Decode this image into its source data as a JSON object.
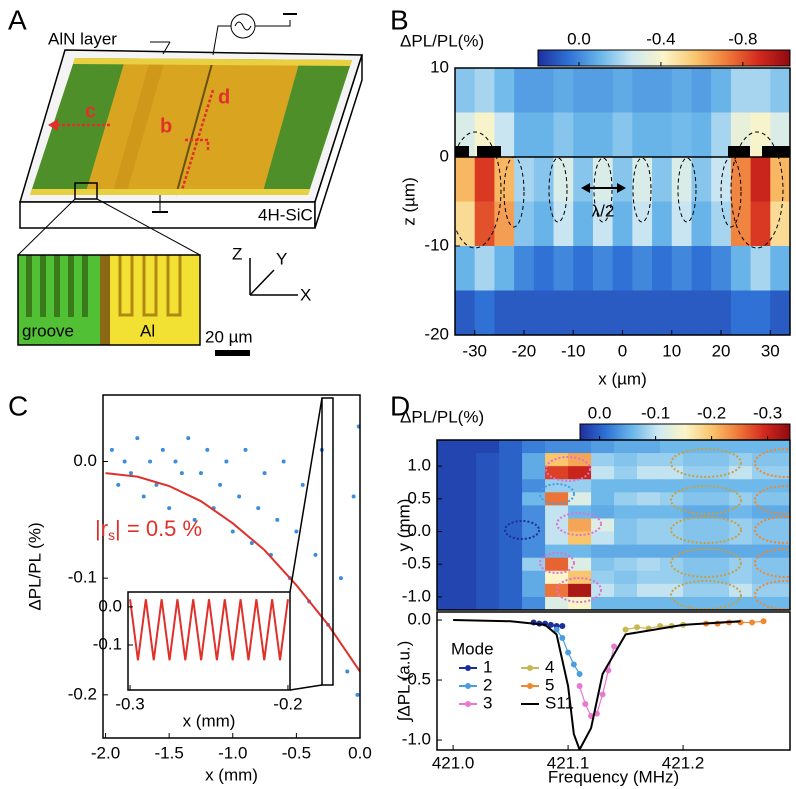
{
  "panel_labels": [
    "A",
    "B",
    "C",
    "D"
  ],
  "diagram": {
    "labels": [
      "AlN layer",
      "c",
      "b",
      "d",
      "4H-SiC",
      "groove",
      "Al",
      "20 µm",
      "Z",
      "Y",
      "X"
    ]
  },
  "chart_data": [
    {
      "type": "heatmap",
      "colorbar_label": "ΔPL/PL(%)",
      "xlabel": "x (µm)",
      "ylabel": "z (µm)",
      "annotation": "λ/2",
      "x": [
        -32,
        -28,
        -24,
        -20,
        -16,
        -12,
        -8,
        -4,
        0,
        4,
        8,
        12,
        16,
        20,
        24,
        28,
        32
      ],
      "y": [
        7.5,
        2.5,
        -2.5,
        -7.5,
        -12.5,
        -17.5
      ],
      "values": [
        [
          -0.15,
          -0.2,
          -0.12,
          -0.05,
          -0.05,
          -0.08,
          -0.05,
          -0.05,
          -0.08,
          -0.05,
          -0.05,
          -0.08,
          -0.05,
          -0.1,
          -0.2,
          -0.2,
          -0.15
        ],
        [
          -0.3,
          -0.4,
          -0.25,
          -0.1,
          -0.1,
          -0.15,
          -0.1,
          -0.1,
          -0.15,
          -0.1,
          -0.1,
          -0.12,
          -0.1,
          -0.2,
          -0.35,
          -0.4,
          -0.3
        ],
        [
          -0.6,
          -0.85,
          -0.6,
          -0.2,
          -0.15,
          -0.3,
          -0.15,
          -0.3,
          -0.15,
          -0.3,
          -0.15,
          -0.3,
          -0.15,
          -0.25,
          -0.7,
          -0.9,
          -0.6
        ],
        [
          -0.5,
          -0.8,
          -0.65,
          -0.15,
          -0.1,
          -0.25,
          -0.1,
          -0.25,
          -0.1,
          -0.25,
          -0.1,
          -0.25,
          -0.1,
          -0.2,
          -0.7,
          -0.85,
          -0.5
        ],
        [
          -0.1,
          -0.2,
          -0.1,
          0.0,
          0.05,
          0.0,
          0.05,
          0.0,
          0.05,
          0.0,
          0.05,
          0.0,
          0.05,
          0.0,
          -0.1,
          -0.2,
          -0.1
        ],
        [
          0.1,
          0.05,
          0.1,
          0.1,
          0.1,
          0.1,
          0.1,
          0.1,
          0.1,
          0.1,
          0.1,
          0.1,
          0.1,
          0.1,
          0.05,
          0.05,
          0.1
        ]
      ],
      "xlim": [
        -34,
        34
      ],
      "ylim": [
        -20,
        10
      ],
      "xticks": [
        -30,
        -20,
        -10,
        0,
        10,
        20,
        30
      ],
      "yticks": [
        10,
        0,
        -10,
        -20
      ],
      "clim": [
        0.2,
        -1.03
      ],
      "cticks": [
        {
          "value": 0,
          "label": "0.0"
        },
        -0.4,
        -0.8
      ],
      "colormap": [
        "#1e2f9e",
        "#2f73d6",
        "#6bb7ea",
        "#cfe9f2",
        "#fbf5c8",
        "#f9c66e",
        "#ef7a3a",
        "#d42a1e",
        "#8e0a10"
      ]
    },
    {
      "type": "scatter",
      "xlabel": "x (mm)",
      "ylabel": "ΔPL/PL (%)",
      "annotation": [
        "|r",
        "s",
        "| = 0.5 %"
      ],
      "xlim": [
        -2.02,
        0
      ],
      "ylim": [
        -0.237,
        0.057
      ],
      "xticks": [
        {
          "value": -2,
          "label": "-2.0"
        },
        -1.5,
        {
          "value": -1,
          "label": "-1.0"
        },
        -0.5,
        {
          "value": 0,
          "label": "0.0"
        }
      ],
      "yticks": [
        {
          "value": 0,
          "label": "0.0"
        },
        -0.1,
        -0.2
      ],
      "series": [
        {
          "type": "scatter",
          "color": "#3a8ee0",
          "x": [
            -1.95,
            -1.9,
            -1.85,
            -1.8,
            -1.75,
            -1.7,
            -1.65,
            -1.6,
            -1.55,
            -1.5,
            -1.45,
            -1.4,
            -1.35,
            -1.3,
            -1.25,
            -1.2,
            -1.15,
            -1.1,
            -1.05,
            -1.0,
            -0.95,
            -0.9,
            -0.85,
            -0.8,
            -0.75,
            -0.7,
            -0.65,
            -0.6,
            -0.55,
            -0.5,
            -0.45,
            -0.4,
            -0.35,
            -0.3,
            -0.25,
            -0.15,
            -0.1,
            -0.05,
            -0.02,
            -0.01
          ],
          "values": [
            0.01,
            -0.02,
            0.0,
            -0.01,
            0.02,
            -0.03,
            0.0,
            -0.02,
            0.01,
            -0.04,
            0.0,
            -0.01,
            0.02,
            -0.05,
            -0.01,
            0.01,
            -0.04,
            -0.02,
            0.0,
            -0.06,
            -0.03,
            0.01,
            -0.07,
            -0.04,
            -0.01,
            -0.08,
            -0.05,
            0.0,
            -0.1,
            -0.06,
            -0.02,
            -0.12,
            -0.08,
            0.01,
            -0.14,
            -0.1,
            -0.18,
            -0.03,
            -0.2,
            0.03
          ]
        },
        {
          "type": "line",
          "color": "#e0302a",
          "x": [
            -2,
            -1.75,
            -1.5,
            -1.25,
            -1,
            -0.75,
            -0.5,
            -0.25,
            0
          ],
          "values": [
            -0.01,
            -0.013,
            -0.021,
            -0.034,
            -0.053,
            -0.076,
            -0.106,
            -0.14,
            -0.18
          ]
        }
      ]
    },
    {
      "type": "line",
      "xlabel": "x (mm)",
      "xlim": [
        -0.3013,
        -0.1987
      ],
      "ylim": [
        -0.218,
        0.039
      ],
      "xticks": [
        -0.3,
        -0.2
      ],
      "yticks": [
        {
          "value": 0,
          "label": "0.0"
        },
        -0.1
      ],
      "series": [
        {
          "color": "#e0302a",
          "x": [
            -0.3,
            -0.295,
            -0.29,
            -0.285,
            -0.28,
            -0.275,
            -0.27,
            -0.265,
            -0.26,
            -0.255,
            -0.25,
            -0.245,
            -0.24,
            -0.235,
            -0.23,
            -0.225,
            -0.22,
            -0.215,
            -0.21,
            -0.205,
            -0.2
          ],
          "values": [
            0.02,
            -0.14,
            0.02,
            -0.14,
            0.02,
            -0.14,
            0.02,
            -0.14,
            0.02,
            -0.14,
            0.02,
            -0.14,
            0.02,
            -0.14,
            0.02,
            -0.14,
            0.02,
            -0.14,
            0.02,
            -0.14,
            0.02
          ]
        }
      ]
    },
    {
      "type": "heatmap",
      "colorbar_label": "ΔPL/PL(%)",
      "ylabel": "y (mm)",
      "x": [
        420.99,
        421.01,
        421.03,
        421.05,
        421.07,
        421.09,
        421.11,
        421.13,
        421.15,
        421.17,
        421.19,
        421.21,
        421.23,
        421.25,
        421.27,
        421.29
      ],
      "y": [
        1.3,
        1.1,
        0.9,
        0.7,
        0.5,
        0.3,
        0.1,
        -0.1,
        -0.3,
        -0.5,
        -0.7,
        -0.9,
        -1.1
      ],
      "values": [
        [
          0.02,
          0.02,
          0.02,
          0.0,
          -0.02,
          -0.03,
          -0.03,
          -0.04,
          -0.05,
          -0.05,
          -0.06,
          -0.06,
          -0.06,
          -0.06,
          -0.06,
          -0.06
        ],
        [
          0.02,
          0.02,
          0.01,
          0.0,
          -0.05,
          -0.2,
          -0.22,
          -0.08,
          -0.07,
          -0.08,
          -0.08,
          -0.07,
          -0.07,
          -0.08,
          -0.07,
          -0.07
        ],
        [
          0.02,
          0.02,
          0.01,
          0.0,
          -0.05,
          -0.28,
          -0.3,
          -0.1,
          -0.08,
          -0.1,
          -0.1,
          -0.08,
          -0.08,
          -0.1,
          -0.08,
          -0.08
        ],
        [
          0.02,
          0.02,
          0.01,
          0.0,
          -0.03,
          -0.08,
          -0.08,
          -0.06,
          -0.06,
          -0.06,
          -0.06,
          -0.06,
          -0.06,
          -0.06,
          -0.06,
          -0.06
        ],
        [
          0.02,
          0.02,
          0.01,
          0.0,
          -0.06,
          -0.25,
          -0.12,
          -0.06,
          -0.08,
          -0.09,
          -0.08,
          -0.07,
          -0.07,
          -0.08,
          -0.07,
          -0.07
        ],
        [
          0.02,
          0.02,
          0.01,
          0.0,
          -0.03,
          -0.1,
          -0.06,
          -0.05,
          -0.06,
          -0.06,
          -0.06,
          -0.05,
          -0.05,
          -0.06,
          -0.05,
          -0.05
        ],
        [
          0.02,
          0.02,
          0.01,
          0.0,
          -0.03,
          -0.1,
          -0.22,
          -0.12,
          -0.07,
          -0.08,
          -0.08,
          -0.07,
          -0.07,
          -0.08,
          -0.07,
          -0.07
        ],
        [
          0.02,
          0.02,
          0.01,
          0.0,
          -0.03,
          -0.1,
          -0.2,
          -0.1,
          -0.07,
          -0.08,
          -0.08,
          -0.07,
          -0.07,
          -0.08,
          -0.07,
          -0.07
        ],
        [
          0.02,
          0.02,
          0.01,
          0.0,
          -0.03,
          -0.06,
          -0.06,
          -0.05,
          -0.05,
          -0.05,
          -0.05,
          -0.05,
          -0.05,
          -0.05,
          -0.05,
          -0.05
        ],
        [
          0.02,
          0.02,
          0.01,
          0.0,
          -0.08,
          -0.26,
          -0.12,
          -0.07,
          -0.08,
          -0.09,
          -0.08,
          -0.07,
          -0.07,
          -0.08,
          -0.07,
          -0.07
        ],
        [
          0.02,
          0.02,
          0.01,
          0.0,
          -0.05,
          -0.15,
          -0.2,
          -0.08,
          -0.07,
          -0.08,
          -0.08,
          -0.07,
          -0.07,
          -0.08,
          -0.07,
          -0.07
        ],
        [
          0.02,
          0.02,
          0.01,
          0.0,
          -0.05,
          -0.25,
          -0.32,
          -0.1,
          -0.08,
          -0.1,
          -0.1,
          -0.08,
          -0.08,
          -0.1,
          -0.08,
          -0.08
        ],
        [
          0.02,
          0.02,
          0.01,
          0.0,
          -0.03,
          -0.12,
          -0.15,
          -0.06,
          -0.06,
          -0.06,
          -0.06,
          -0.06,
          -0.06,
          -0.06,
          -0.06,
          -0.06
        ]
      ],
      "xlim": [
        420.986,
        421.293
      ],
      "ylim": [
        -1.2,
        1.4
      ],
      "yticks": [
        {
          "value": 1,
          "label": "1.0"
        },
        0.5,
        {
          "value": 0,
          "label": "0.0"
        },
        -0.5,
        {
          "value": -1,
          "label": "-1.0"
        }
      ],
      "clim": [
        0.035,
        -0.34
      ],
      "cticks": [
        {
          "value": 0,
          "label": "0.0"
        },
        -0.1,
        -0.2,
        -0.3
      ],
      "colormap": [
        "#1e2f9e",
        "#2f73d6",
        "#6bb7ea",
        "#cfe9f2",
        "#fbf5c8",
        "#f9c66e",
        "#ef7a3a",
        "#d42a1e",
        "#8e0a10"
      ]
    },
    {
      "type": "line",
      "xlabel": "Frequency (MHz)",
      "ylabel": "∫ΔPL (a.u.)",
      "legend_title": "Mode",
      "legend": "lower left",
      "xlim": [
        420.986,
        421.293
      ],
      "ylim": [
        -1.083,
        0.067
      ],
      "xticks": [
        {
          "value": 421,
          "label": "421.0"
        },
        421.1,
        421.2
      ],
      "yticks": [
        {
          "value": 0,
          "label": "0.0"
        },
        -0.5,
        {
          "value": -1,
          "label": "-1.0"
        }
      ],
      "series": [
        {
          "name": "1",
          "color": "#1a2f9a",
          "markers": true,
          "x": [
            421.07,
            421.075,
            421.08,
            421.085,
            421.09,
            421.095
          ],
          "values": [
            -0.02,
            -0.03,
            -0.03,
            -0.04,
            -0.05,
            -0.05
          ]
        },
        {
          "name": "2",
          "color": "#4a9ee0",
          "markers": true,
          "x": [
            421.09,
            421.095,
            421.1,
            421.105,
            421.11
          ],
          "values": [
            -0.08,
            -0.15,
            -0.27,
            -0.37,
            -0.45
          ]
        },
        {
          "name": "3",
          "color": "#e878d0",
          "markers": true,
          "x": [
            421.11,
            421.115,
            421.12,
            421.125,
            421.13,
            421.135,
            421.14
          ],
          "values": [
            -0.55,
            -0.7,
            -0.8,
            -0.78,
            -0.62,
            -0.42,
            -0.22
          ]
        },
        {
          "name": "4",
          "color": "#c8b850",
          "markers": true,
          "x": [
            421.15,
            421.16,
            421.17,
            421.18,
            421.19,
            421.2
          ],
          "values": [
            -0.08,
            -0.06,
            -0.07,
            -0.05,
            -0.05,
            -0.04
          ]
        },
        {
          "name": "5",
          "color": "#f08830",
          "markers": true,
          "x": [
            421.22,
            421.23,
            421.24,
            421.25,
            421.26,
            421.27
          ],
          "values": [
            -0.03,
            -0.03,
            -0.02,
            -0.02,
            -0.02,
            -0.01
          ]
        },
        {
          "name": "S11",
          "color": "#000000",
          "markers": false,
          "x": [
            421.0,
            421.05,
            421.08,
            421.09,
            421.1,
            421.105,
            421.11,
            421.12,
            421.13,
            421.15,
            421.2,
            421.25
          ],
          "values": [
            0.0,
            -0.01,
            -0.04,
            -0.12,
            -0.55,
            -0.95,
            -1.08,
            -0.9,
            -0.45,
            -0.12,
            -0.04,
            -0.01
          ]
        }
      ]
    }
  ]
}
